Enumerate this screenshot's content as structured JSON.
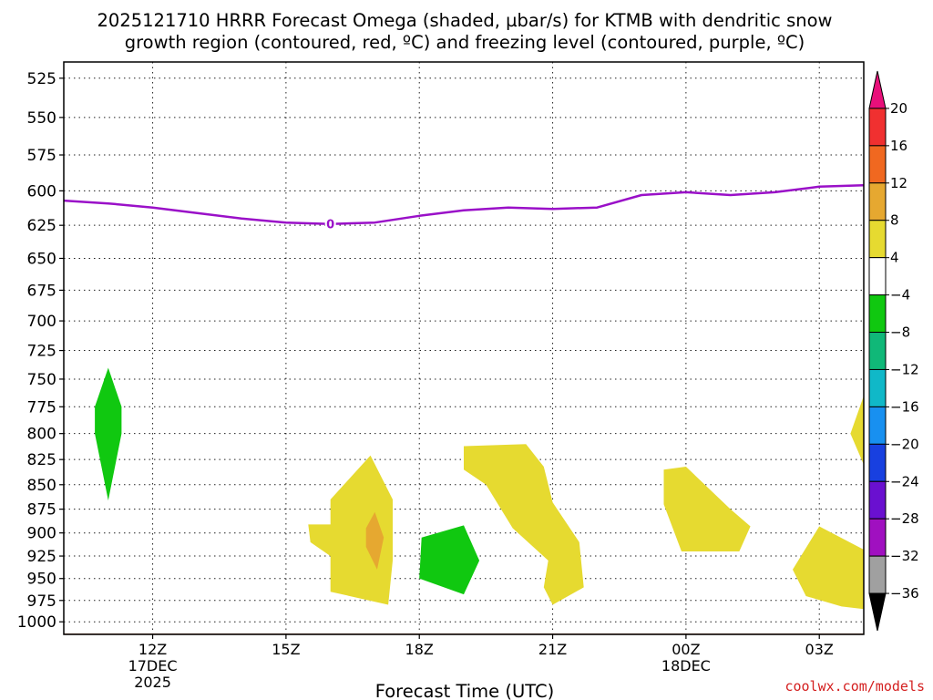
{
  "chart_data": {
    "type": "heatmap",
    "title": [
      "2025121710 HRRR Forecast Omega (shaded, µbar/s) for KTMB with dendritic snow",
      "growth region (contoured, red, ºC) and freezing level (contoured, purple, ºC)"
    ],
    "xlabel": "Forecast Time (UTC)",
    "x_ticks": [
      {
        "t": 12,
        "lines": [
          "12Z",
          "17DEC",
          "2025"
        ]
      },
      {
        "t": 15,
        "lines": [
          "15Z"
        ]
      },
      {
        "t": 18,
        "lines": [
          "18Z"
        ]
      },
      {
        "t": 21,
        "lines": [
          "21Z"
        ]
      },
      {
        "t": 24,
        "lines": [
          "00Z",
          "18DEC"
        ]
      },
      {
        "t": 27,
        "lines": [
          "03Z"
        ]
      }
    ],
    "xlim": [
      10,
      28
    ],
    "y_ticks": [
      525,
      550,
      575,
      600,
      625,
      650,
      675,
      700,
      725,
      750,
      775,
      800,
      825,
      850,
      875,
      900,
      925,
      950,
      975,
      1000
    ],
    "ylim": [
      1015,
      515
    ],
    "yscale": "log",
    "grid": true,
    "surface_pressure": 1014,
    "surface_color": "#a0522d",
    "colorbar": {
      "labels": [
        "20",
        "16",
        "12",
        "8",
        "4",
        "−4",
        "−8",
        "−12",
        "−16",
        "−20",
        "−24",
        "−28",
        "−32",
        "−36"
      ],
      "colors": [
        "#e8107a",
        "#f03030",
        "#f06820",
        "#e6a830",
        "#e6da30",
        "#ffffff",
        "#10c810",
        "#10b878",
        "#10b8c8",
        "#1890f0",
        "#1840e0",
        "#6a10d0",
        "#a010c0",
        "#a0a0a0",
        "#000000"
      ]
    },
    "freezing_level": {
      "color": "#9a10c8",
      "label": "0",
      "label_at": [
        16,
        624
      ],
      "points": [
        [
          10,
          607
        ],
        [
          11,
          609
        ],
        [
          12,
          612
        ],
        [
          13,
          616
        ],
        [
          14,
          620
        ],
        [
          15,
          623
        ],
        [
          16,
          624
        ],
        [
          17,
          623
        ],
        [
          18,
          618
        ],
        [
          19,
          614
        ],
        [
          20,
          612
        ],
        [
          21,
          613
        ],
        [
          22,
          612
        ],
        [
          23,
          603
        ],
        [
          24,
          601
        ],
        [
          25,
          603
        ],
        [
          26,
          601
        ],
        [
          27,
          597
        ],
        [
          28,
          596
        ]
      ]
    },
    "omega_regions": [
      {
        "color": "#10c810",
        "points": [
          [
            11.0,
            740
          ],
          [
            11.3,
            775
          ],
          [
            11.3,
            800
          ],
          [
            11.0,
            866
          ],
          [
            10.7,
            800
          ],
          [
            10.7,
            775
          ]
        ]
      },
      {
        "color": "#e6da30",
        "points": [
          [
            16.9,
            821
          ],
          [
            17.4,
            865
          ],
          [
            17.4,
            930
          ],
          [
            17.3,
            980
          ],
          [
            16.0,
            965
          ],
          [
            16.0,
            925
          ],
          [
            15.55,
            910
          ],
          [
            15.5,
            891
          ],
          [
            16.0,
            891
          ],
          [
            16.0,
            865
          ]
        ]
      },
      {
        "color": "#e6a830",
        "points": [
          [
            17.0,
            878
          ],
          [
            17.2,
            905
          ],
          [
            17.05,
            940
          ],
          [
            16.8,
            915
          ],
          [
            16.8,
            895
          ]
        ]
      },
      {
        "color": "#10c810",
        "points": [
          [
            18.05,
            905
          ],
          [
            19.0,
            892
          ],
          [
            19.35,
            930
          ],
          [
            19.0,
            968
          ],
          [
            18.0,
            950
          ]
        ]
      },
      {
        "color": "#e6da30",
        "points": [
          [
            19.0,
            812
          ],
          [
            20.4,
            810
          ],
          [
            20.8,
            832
          ],
          [
            21.0,
            868
          ],
          [
            21.6,
            910
          ],
          [
            21.7,
            960
          ],
          [
            21.0,
            980
          ],
          [
            20.8,
            960
          ],
          [
            20.9,
            930
          ],
          [
            20.1,
            895
          ],
          [
            19.5,
            850
          ],
          [
            19.0,
            835
          ]
        ]
      },
      {
        "color": "#e6da30",
        "points": [
          [
            23.5,
            835
          ],
          [
            24.0,
            832
          ],
          [
            25.0,
            875
          ],
          [
            25.45,
            893
          ],
          [
            25.2,
            920
          ],
          [
            23.9,
            920
          ],
          [
            23.5,
            870
          ]
        ]
      },
      {
        "color": "#e6da30",
        "points": [
          [
            28,
            918
          ],
          [
            27.0,
            893
          ],
          [
            26.4,
            940
          ],
          [
            26.7,
            970
          ],
          [
            27.5,
            982
          ],
          [
            28,
            985
          ]
        ]
      },
      {
        "color": "#e6da30",
        "points": [
          [
            28,
            765
          ],
          [
            27.7,
            800
          ],
          [
            28,
            830
          ]
        ]
      }
    ]
  },
  "credit": "coolwx.com/models"
}
